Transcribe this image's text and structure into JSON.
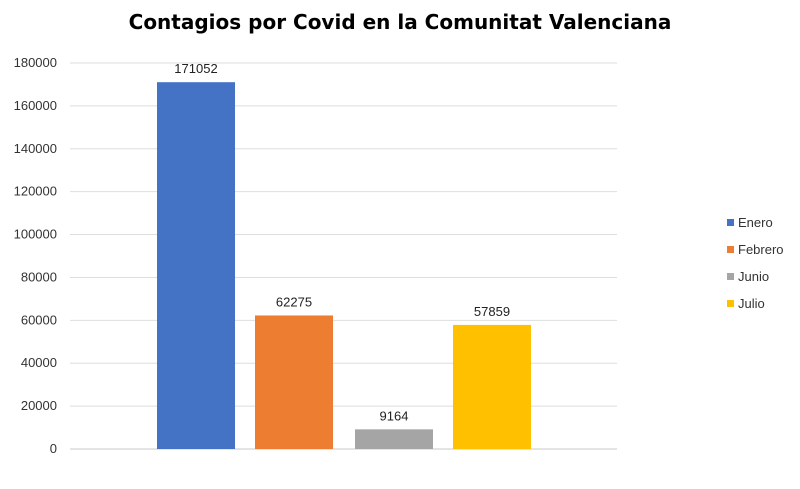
{
  "chart_data": {
    "type": "bar",
    "title": "Contagios por Covid en la Comunitat Valenciana",
    "xlabel": "",
    "ylabel": "",
    "ylim": [
      0,
      180000
    ],
    "yticks": [
      0,
      20000,
      40000,
      60000,
      80000,
      100000,
      120000,
      140000,
      160000,
      180000
    ],
    "grid": true,
    "legend_position": "right",
    "series": [
      {
        "name": "Enero",
        "value": 171052,
        "color": "#4472C4"
      },
      {
        "name": "Febrero",
        "value": 62275,
        "color": "#ED7D31"
      },
      {
        "name": "Junio",
        "value": 9164,
        "color": "#A5A5A5"
      },
      {
        "name": "Julio",
        "value": 57859,
        "color": "#FFC000"
      }
    ]
  }
}
